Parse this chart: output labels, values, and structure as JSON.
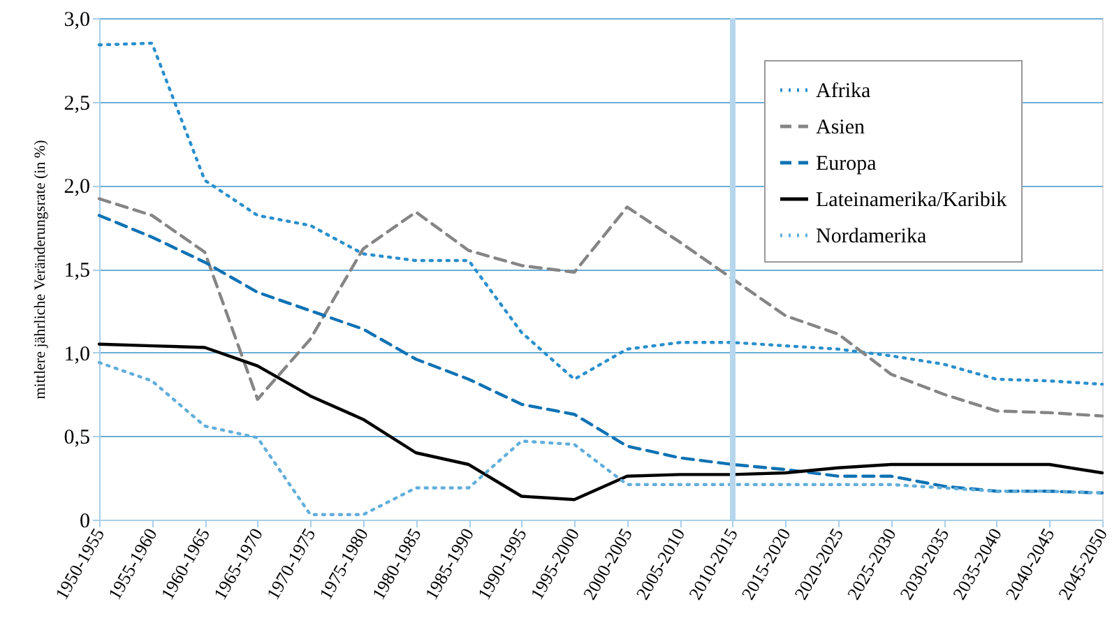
{
  "chart_data": {
    "type": "line",
    "ylabel": "mittlere jährliche Veränderungsrate (in %)",
    "categories": [
      "1950-1955",
      "1955-1960",
      "1960-1965",
      "1965-1970",
      "1970-1975",
      "1975-1980",
      "1980-1985",
      "1985-1990",
      "1990-1995",
      "1995-2000",
      "2000-2005",
      "2005-2010",
      "2010-2015",
      "2015-2020",
      "2020-2025",
      "2025-2030",
      "2030-2035",
      "2035-2040",
      "2040-2045",
      "2045-2050"
    ],
    "series": [
      {
        "name": "Afrika",
        "color": "#2a8fcc",
        "line_style": "dotted",
        "values": [
          2.84,
          2.85,
          2.03,
          1.82,
          1.76,
          1.59,
          1.55,
          1.55,
          1.12,
          0.84,
          1.02,
          1.06,
          1.06,
          1.04,
          1.02,
          0.98,
          0.93,
          0.84,
          0.83,
          0.81
        ]
      },
      {
        "name": "Asien",
        "color": "#858585",
        "line_style": "dashed",
        "values": [
          1.92,
          1.82,
          1.6,
          0.72,
          1.08,
          1.62,
          1.84,
          1.61,
          1.52,
          1.48,
          1.87,
          1.66,
          1.44,
          1.22,
          1.11,
          0.87,
          0.75,
          0.65,
          0.64,
          0.62
        ]
      },
      {
        "name": "Europa",
        "color": "#0f72b4",
        "line_style": "dashed",
        "values": [
          1.82,
          1.69,
          1.54,
          1.36,
          1.25,
          1.14,
          0.96,
          0.84,
          0.69,
          0.63,
          0.44,
          0.37,
          0.33,
          0.3,
          0.26,
          0.26,
          0.2,
          0.17,
          0.17,
          0.16
        ]
      },
      {
        "name": "Lateinamerika/Karibik",
        "color": "#000000",
        "line_style": "solid",
        "values": [
          1.05,
          1.04,
          1.03,
          0.92,
          0.74,
          0.6,
          0.4,
          0.33,
          0.14,
          0.12,
          0.26,
          0.27,
          0.27,
          0.28,
          0.31,
          0.33,
          0.33,
          0.33,
          0.33,
          0.28
        ]
      },
      {
        "name": "Nordamerika",
        "color": "#62aedb",
        "line_style": "dotted",
        "values": [
          0.94,
          0.83,
          0.56,
          0.49,
          0.03,
          0.03,
          0.19,
          0.19,
          0.47,
          0.45,
          0.21,
          0.21,
          0.21,
          0.21,
          0.21,
          0.21,
          0.19,
          0.17,
          0.17,
          0.16
        ]
      }
    ],
    "ylim": [
      0,
      3
    ],
    "yticks": [
      0,
      {
        "value": 0.5,
        "label": "0,5"
      },
      {
        "value": 1,
        "label": "1,0"
      },
      {
        "value": 1.5,
        "label": "1,5"
      },
      {
        "value": 2,
        "label": "2,0"
      },
      {
        "value": 2.5,
        "label": "2,5"
      },
      {
        "value": 3,
        "label": "3,0"
      }
    ],
    "ref_lines": [
      {
        "axis": "x",
        "value": "2010-2015",
        "color": "#b5d6ec"
      }
    ],
    "grid": "y",
    "legend": "top right"
  }
}
